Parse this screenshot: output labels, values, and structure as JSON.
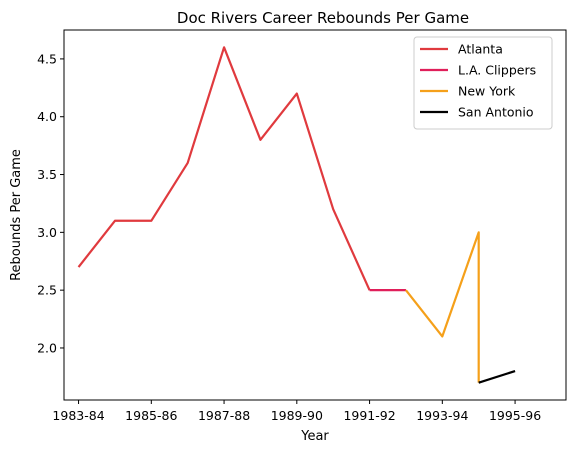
{
  "chart_data": {
    "type": "line",
    "title": "Doc Rivers Career Rebounds Per Game",
    "xlabel": "Year",
    "ylabel": "Rebounds Per Game",
    "x_ticks": [
      "1983-84",
      "1985-86",
      "1987-88",
      "1989-90",
      "1991-92",
      "1993-94",
      "1995-96"
    ],
    "y_ticks": [
      "2.0",
      "2.5",
      "3.0",
      "3.5",
      "4.0",
      "4.5"
    ],
    "xlim": [
      1982.6,
      1996.4
    ],
    "ylim": [
      1.55,
      4.75
    ],
    "grid": false,
    "legend_position": "top-right",
    "series": [
      {
        "name": "Atlanta",
        "color": "#e03a3e",
        "points": [
          [
            "1983-84",
            2.7
          ],
          [
            "1984-85",
            3.1
          ],
          [
            "1985-86",
            3.1
          ],
          [
            "1986-87",
            3.6
          ],
          [
            "1987-88",
            4.6
          ],
          [
            "1988-89",
            3.8
          ],
          [
            "1989-90",
            4.2
          ],
          [
            "1990-91",
            3.2
          ],
          [
            "1991-92",
            2.5
          ]
        ]
      },
      {
        "name": "L.A. Clippers",
        "color": "#e01f5a",
        "points": [
          [
            "1991-92",
            2.5
          ],
          [
            "1992-93",
            2.5
          ]
        ]
      },
      {
        "name": "New York",
        "color": "#f5a01a",
        "points": [
          [
            "1992-93",
            2.5
          ],
          [
            "1993-94",
            2.1
          ],
          [
            "1994-95",
            3.0
          ],
          [
            "1994-95",
            1.7
          ]
        ]
      },
      {
        "name": "San Antonio",
        "color": "#000000",
        "points": [
          [
            "1994-95",
            1.7
          ],
          [
            "1995-96",
            1.8
          ]
        ]
      }
    ]
  }
}
